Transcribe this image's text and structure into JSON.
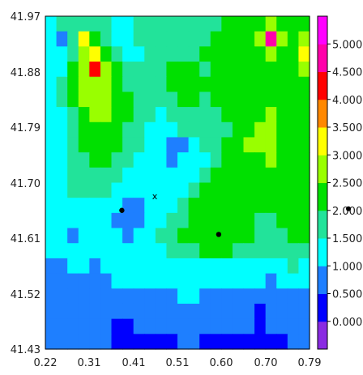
{
  "chart_data": {
    "type": "heatmap",
    "title": "",
    "xlabel": "",
    "ylabel": "",
    "xlim": [
      0.22,
      0.79
    ],
    "ylim": [
      41.43,
      41.97
    ],
    "x_ticks": [
      "0.22",
      "0.31",
      "0.41",
      "0.51",
      "0.60",
      "0.70",
      "0.79"
    ],
    "y_ticks": [
      "41.97",
      "41.88",
      "41.79",
      "41.70",
      "41.61",
      "41.52",
      "41.43"
    ],
    "colorbar": {
      "levels": [
        "0.000",
        "0.500",
        "1.000",
        "1.500",
        "2.000",
        "2.500",
        "3.000",
        "3.500",
        "4.000",
        "4.500",
        "5.000"
      ],
      "colors": [
        "#8a2be2",
        "#0000ff",
        "#1e7fff",
        "#00ffff",
        "#22e39a",
        "#00e000",
        "#99ff00",
        "#ffff00",
        "#ff8800",
        "#ff0000",
        "#ff00aa",
        "#ff00ff"
      ]
    },
    "grid_shape": [
      22,
      24
    ],
    "grid_rows_top_to_bottom": [
      [
        3,
        4,
        4,
        4,
        4,
        4,
        3,
        3,
        4,
        4,
        4,
        4,
        4,
        4,
        4,
        4,
        5,
        5,
        5,
        5,
        6,
        5,
        5,
        5
      ],
      [
        3,
        2,
        4,
        7,
        5,
        4,
        3,
        3,
        4,
        4,
        4,
        4,
        4,
        4,
        4,
        5,
        5,
        5,
        5,
        6,
        10,
        6,
        5,
        6
      ],
      [
        3,
        3,
        4,
        6,
        7,
        5,
        4,
        3,
        3,
        4,
        4,
        4,
        4,
        4,
        5,
        5,
        5,
        5,
        5,
        5,
        6,
        5,
        5,
        7
      ],
      [
        3,
        3,
        5,
        6,
        9,
        6,
        5,
        4,
        4,
        4,
        4,
        5,
        5,
        5,
        4,
        5,
        5,
        5,
        5,
        5,
        5,
        5,
        5,
        6
      ],
      [
        3,
        4,
        5,
        6,
        6,
        6,
        5,
        4,
        4,
        4,
        4,
        5,
        5,
        5,
        5,
        5,
        5,
        5,
        5,
        5,
        5,
        5,
        5,
        5
      ],
      [
        3,
        4,
        5,
        6,
        6,
        6,
        5,
        5,
        4,
        4,
        4,
        4,
        5,
        5,
        4,
        5,
        5,
        5,
        5,
        5,
        5,
        5,
        5,
        5
      ],
      [
        3,
        3,
        4,
        5,
        6,
        6,
        5,
        5,
        4,
        4,
        3,
        4,
        4,
        4,
        4,
        4,
        5,
        5,
        5,
        5,
        6,
        5,
        5,
        5
      ],
      [
        3,
        3,
        4,
        5,
        5,
        5,
        5,
        4,
        4,
        3,
        3,
        3,
        4,
        4,
        4,
        4,
        4,
        5,
        5,
        6,
        6,
        5,
        5,
        5
      ],
      [
        3,
        3,
        4,
        5,
        5,
        5,
        5,
        4,
        4,
        3,
        3,
        2,
        2,
        3,
        4,
        4,
        5,
        5,
        6,
        6,
        6,
        5,
        5,
        5
      ],
      [
        3,
        3,
        4,
        4,
        5,
        5,
        4,
        4,
        3,
        3,
        3,
        2,
        3,
        3,
        3,
        4,
        5,
        5,
        5,
        5,
        6,
        5,
        5,
        5
      ],
      [
        3,
        3,
        4,
        4,
        4,
        4,
        4,
        3,
        3,
        3,
        3,
        3,
        3,
        3,
        4,
        5,
        5,
        5,
        5,
        5,
        5,
        5,
        5,
        5
      ],
      [
        3,
        3,
        4,
        4,
        4,
        4,
        3,
        3,
        3,
        3,
        3,
        3,
        3,
        4,
        5,
        5,
        5,
        5,
        5,
        5,
        5,
        5,
        5,
        5
      ],
      [
        3,
        3,
        3,
        3,
        3,
        3,
        3,
        2,
        2,
        3,
        3,
        3,
        4,
        5,
        5,
        5,
        5,
        5,
        5,
        5,
        5,
        5,
        5,
        5
      ],
      [
        3,
        3,
        3,
        3,
        3,
        3,
        2,
        2,
        2,
        3,
        3,
        4,
        4,
        5,
        5,
        5,
        5,
        5,
        5,
        4,
        4,
        5,
        5,
        5
      ],
      [
        3,
        3,
        2,
        3,
        3,
        3,
        3,
        2,
        3,
        3,
        4,
        4,
        5,
        5,
        5,
        5,
        5,
        5,
        5,
        4,
        4,
        4,
        5,
        5
      ],
      [
        3,
        3,
        3,
        3,
        3,
        3,
        3,
        3,
        3,
        3,
        3,
        4,
        4,
        4,
        5,
        5,
        5,
        4,
        4,
        4,
        4,
        4,
        4,
        4
      ],
      [
        2,
        2,
        3,
        3,
        2,
        3,
        3,
        3,
        3,
        3,
        3,
        3,
        3,
        3,
        3,
        3,
        3,
        3,
        3,
        3,
        3,
        3,
        4,
        3
      ],
      [
        2,
        2,
        2,
        2,
        2,
        2,
        3,
        3,
        3,
        3,
        3,
        3,
        3,
        3,
        3,
        3,
        3,
        3,
        3,
        3,
        2,
        3,
        3,
        3
      ],
      [
        2,
        2,
        2,
        2,
        2,
        2,
        2,
        2,
        2,
        2,
        2,
        2,
        3,
        3,
        2,
        2,
        2,
        2,
        2,
        2,
        2,
        2,
        2,
        2
      ],
      [
        2,
        2,
        2,
        2,
        2,
        2,
        2,
        2,
        2,
        2,
        2,
        2,
        2,
        2,
        2,
        2,
        2,
        2,
        2,
        1,
        2,
        2,
        2,
        2
      ],
      [
        2,
        2,
        2,
        2,
        2,
        2,
        1,
        1,
        2,
        2,
        2,
        2,
        2,
        2,
        2,
        2,
        2,
        2,
        2,
        1,
        2,
        2,
        2,
        2
      ],
      [
        2,
        2,
        2,
        2,
        2,
        2,
        1,
        1,
        1,
        1,
        1,
        1,
        2,
        2,
        1,
        1,
        1,
        1,
        1,
        1,
        1,
        1,
        2,
        2
      ]
    ],
    "markers": [
      {
        "x": 0.385,
        "y": 41.655
      },
      {
        "x": 0.594,
        "y": 41.616
      }
    ],
    "annotations": [
      {
        "text": "x",
        "x": 0.456,
        "y": 41.678
      }
    ],
    "external_markers": [
      {
        "near": "colorbar",
        "value": "2.0"
      }
    ]
  }
}
